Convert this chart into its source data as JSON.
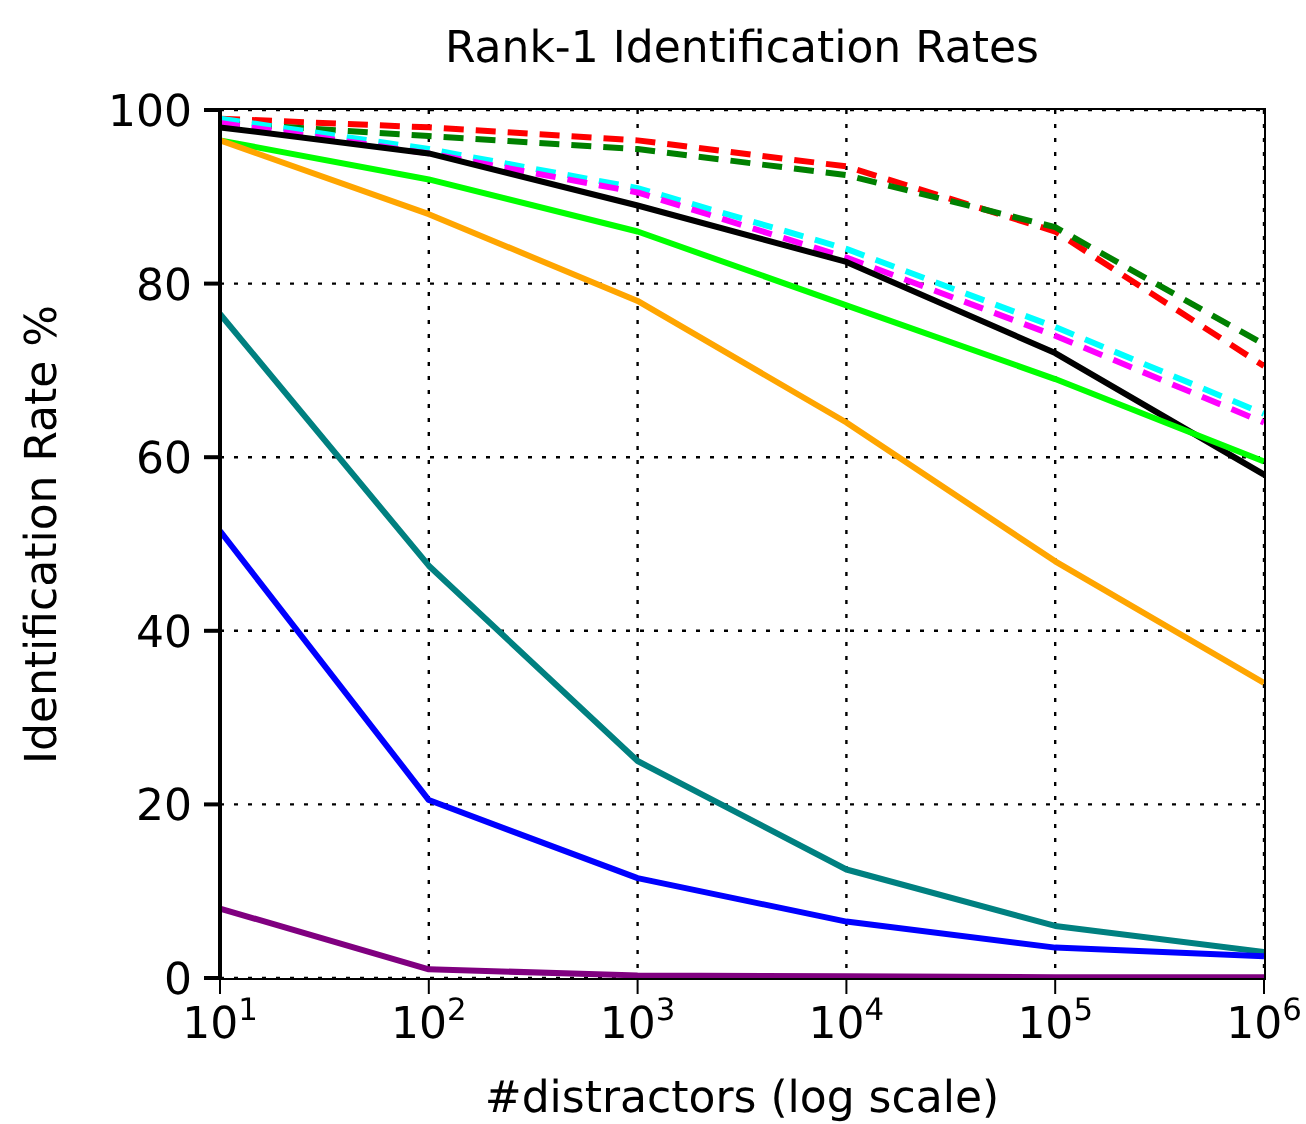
{
  "chart_data": {
    "type": "line",
    "title": "Rank-1 Identification Rates",
    "xlabel": "#distractors (log scale)",
    "ylabel": "Identification Rate %",
    "log": "x",
    "grid": true,
    "marker": "none",
    "legend": false,
    "x": [
      10,
      100,
      1000,
      10000,
      100000,
      1000000
    ],
    "xlim": [
      10,
      1000000
    ],
    "xticks": [
      {
        "value": 10,
        "label": "10$^{1}$"
      },
      {
        "value": 100,
        "label": "10$^{2}$"
      },
      {
        "value": 1000,
        "label": "10$^{3}$"
      },
      {
        "value": 10000,
        "label": "10$^{4}$"
      },
      {
        "value": 100000,
        "label": "10$^{5}$"
      },
      {
        "value": 1000000,
        "label": "10$^{6}$"
      }
    ],
    "ylim": [
      0,
      100
    ],
    "yticks": [
      0,
      20,
      40,
      60,
      80,
      100
    ],
    "series": [
      {
        "color": "#ff0000",
        "line_style": "dashed",
        "values": [
          99,
          98,
          96.5,
          93.5,
          86,
          70.5
        ]
      },
      {
        "color": "#008000",
        "line_style": "dashed",
        "values": [
          98.5,
          97,
          95.5,
          92.5,
          86.5,
          73
        ]
      },
      {
        "color": "#00ffff",
        "line_style": "dashed",
        "values": [
          99,
          95.5,
          91,
          84,
          75,
          65
        ]
      },
      {
        "color": "#ff00ff",
        "line_style": "dashed",
        "values": [
          98.5,
          95,
          90.5,
          83,
          74,
          64
        ]
      },
      {
        "color": "#000000",
        "line_style": "solid",
        "values": [
          98,
          95,
          89,
          82.5,
          72,
          58
        ]
      },
      {
        "color": "#00ff00",
        "line_style": "solid",
        "values": [
          96.5,
          92,
          86,
          77.5,
          69,
          59.5
        ]
      },
      {
        "color": "#ffa500",
        "line_style": "solid",
        "values": [
          96.5,
          88,
          78,
          64,
          48,
          34
        ]
      },
      {
        "color": "#008080",
        "line_style": "solid",
        "values": [
          76.5,
          47.5,
          25,
          12.5,
          6,
          3
        ]
      },
      {
        "color": "#0000ff",
        "line_style": "solid",
        "values": [
          51.5,
          20.5,
          11.5,
          6.5,
          3.5,
          2.5
        ]
      },
      {
        "color": "#800080",
        "line_style": "solid",
        "values": [
          8,
          1,
          0.3,
          0.2,
          0.1,
          0.1
        ]
      }
    ]
  }
}
